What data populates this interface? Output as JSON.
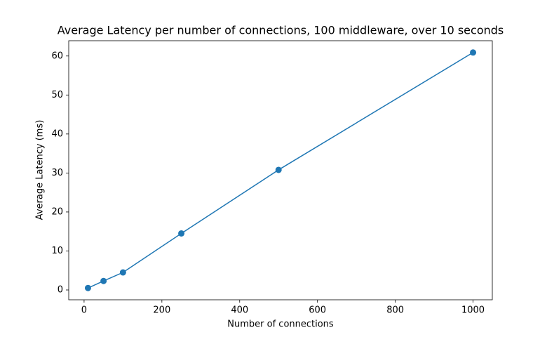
{
  "chart_data": {
    "type": "line",
    "title": "Average Latency per number of connections, 100 middleware, over 10 seconds",
    "xlabel": "Number of connections",
    "ylabel": "Average Latency (ms)",
    "x": [
      10,
      50,
      100,
      250,
      500,
      1000
    ],
    "series": [
      {
        "color": "#1f77b4",
        "values": [
          0.5,
          2.3,
          4.5,
          14.5,
          30.8,
          60.9
        ]
      }
    ],
    "xlim": [
      -39.5,
      1049.5
    ],
    "xticks": [
      0,
      200,
      400,
      600,
      800,
      1000
    ],
    "ylim": [
      -2.52,
      63.92
    ],
    "yticks": [
      0,
      10,
      20,
      30,
      40,
      50,
      60
    ],
    "grid": false,
    "markers": true
  }
}
